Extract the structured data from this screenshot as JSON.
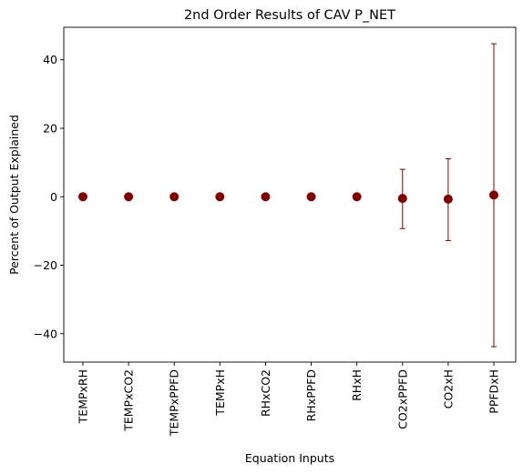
{
  "chart_data": {
    "type": "scatter",
    "title": "2nd Order Results of CAV P_NET",
    "xlabel": "Equation Inputs",
    "ylabel": "Percent of Output Explained",
    "categories": [
      "TEMPxRH",
      "TEMPxCO2",
      "TEMPxPPFD",
      "TEMPxH",
      "RHxCO2",
      "RHxPPFD",
      "RHxH",
      "CO2xPPFD",
      "CO2xH",
      "PPFDxH"
    ],
    "values": [
      0,
      0,
      0,
      0,
      0,
      0,
      0,
      -0.5,
      -0.7,
      0.5
    ],
    "error_low": [
      0,
      0,
      0,
      0,
      0,
      0,
      0,
      -9.3,
      -12.8,
      -43.8
    ],
    "error_high": [
      0,
      0,
      0,
      0,
      0,
      0,
      0,
      8.0,
      11.1,
      44.7
    ],
    "ylim": [
      -48.3,
      49.5
    ],
    "yticks": [
      -40,
      -20,
      0,
      20,
      40
    ],
    "yticklabels": [
      "−40",
      "−20",
      "0",
      "20",
      "40"
    ],
    "grid": false,
    "colors": {
      "marker": "#800000",
      "errorbar": "#800000"
    }
  }
}
